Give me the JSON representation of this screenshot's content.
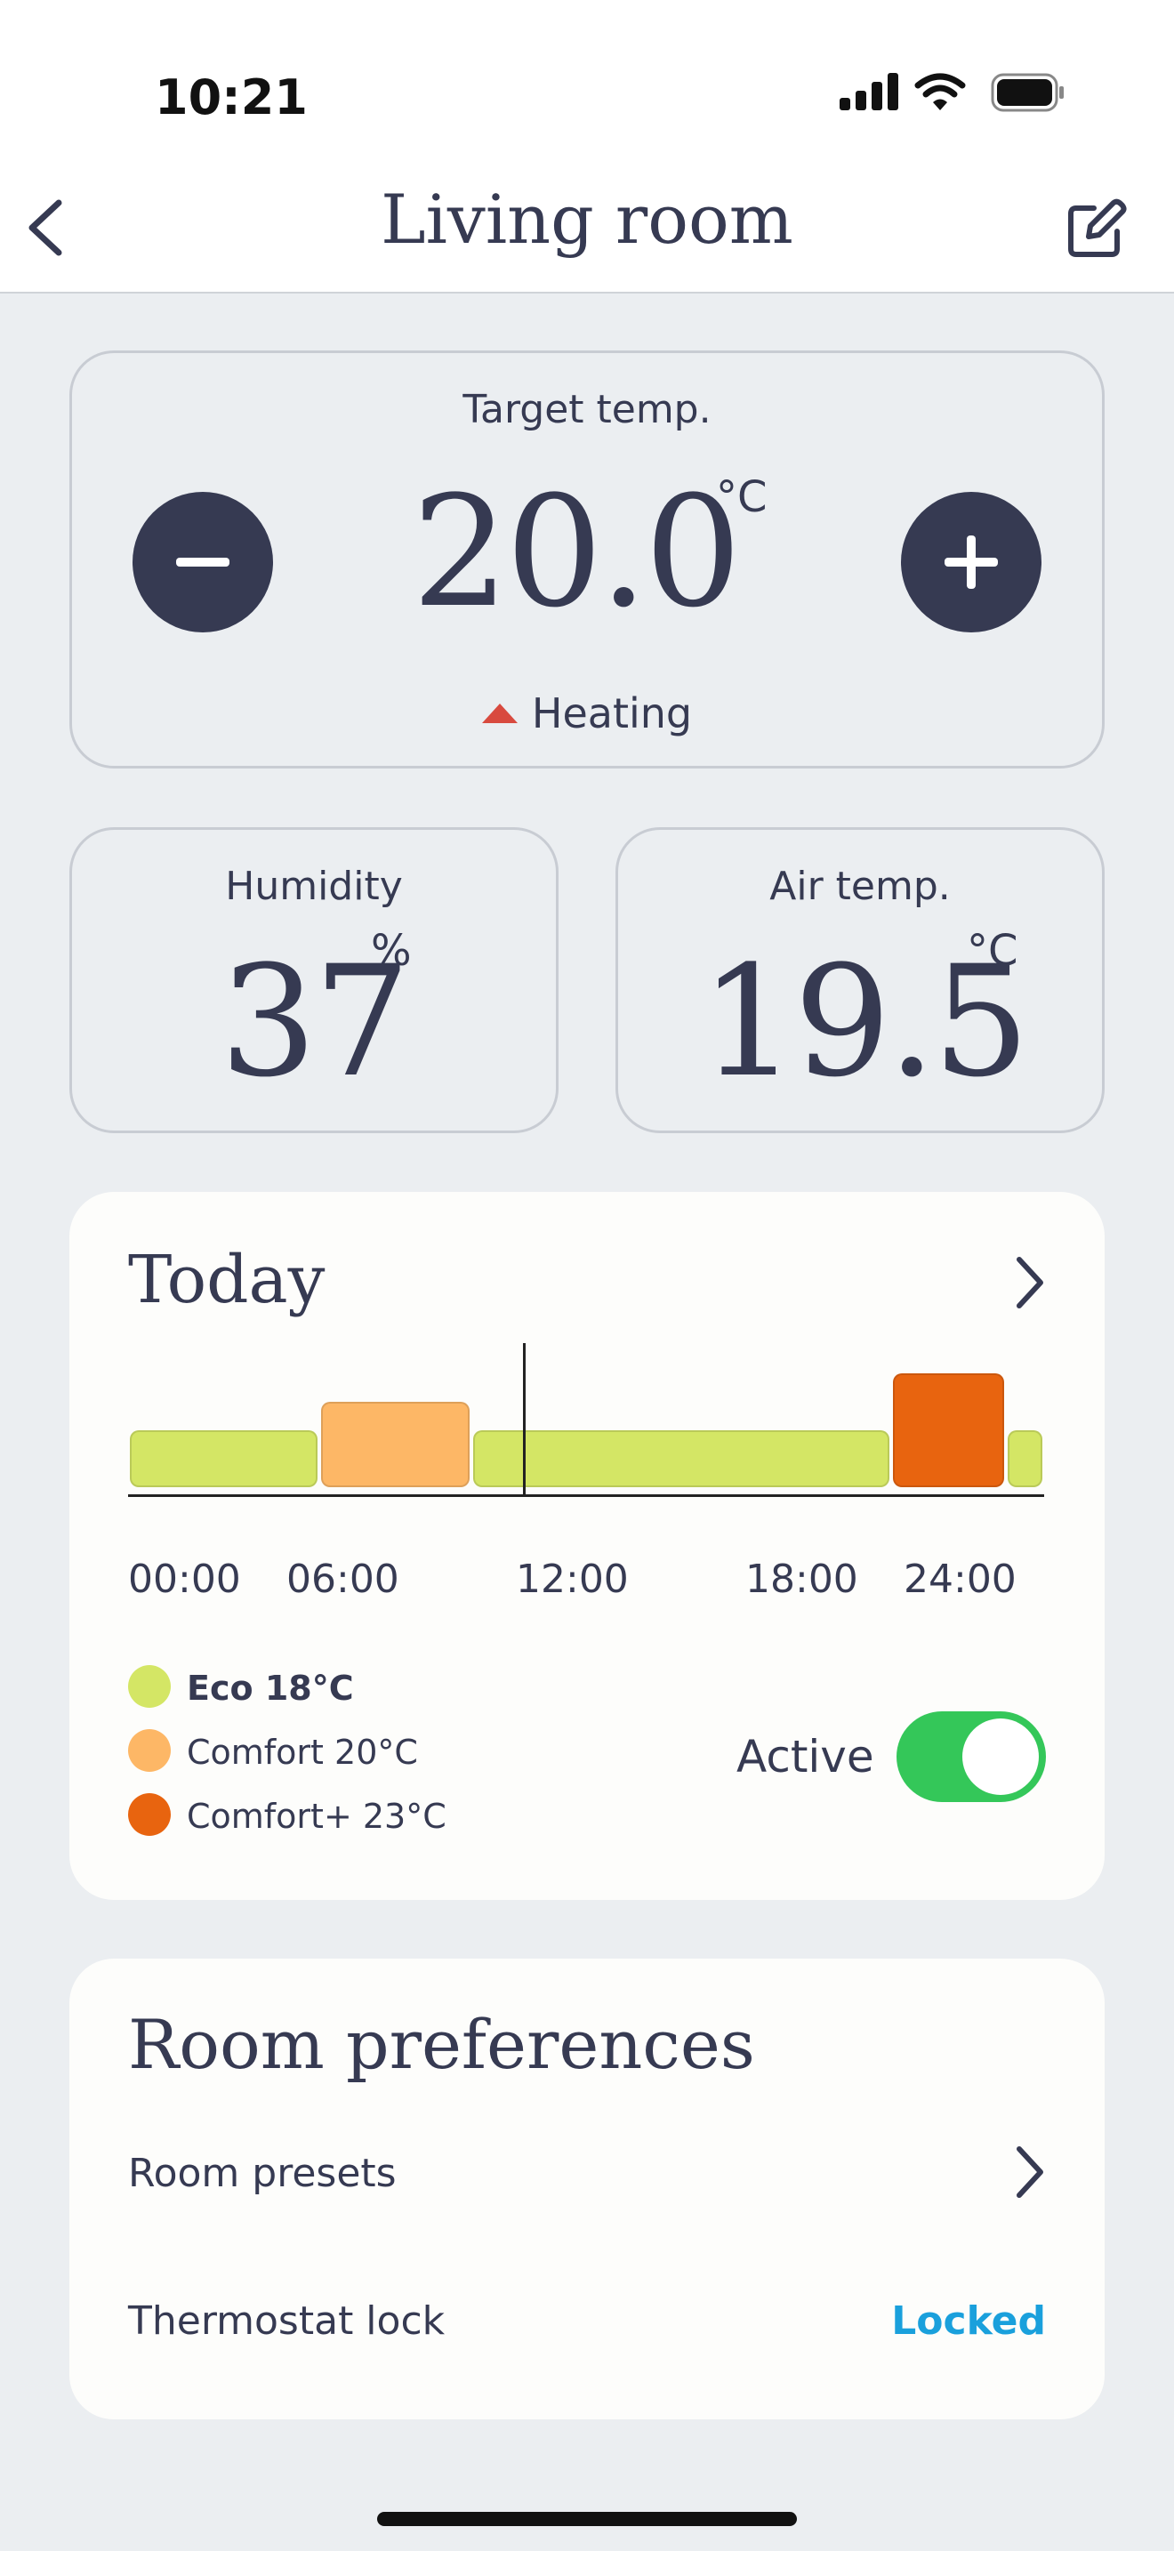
{
  "status_bar": {
    "time": "10:21"
  },
  "header": {
    "title": "Living room"
  },
  "target": {
    "label": "Target temp.",
    "value": "20.0",
    "unit": "°C",
    "mode": "Heating",
    "heating_color": "#d84a3f"
  },
  "humidity": {
    "label": "Humidity",
    "value": "37",
    "unit": "%"
  },
  "air_temp": {
    "label": "Air temp.",
    "value": "19.5",
    "unit": "°C"
  },
  "today": {
    "title": "Today",
    "schedule": [
      {
        "start": "00:00",
        "end": "05:00",
        "preset": "eco"
      },
      {
        "start": "05:00",
        "end": "09:00",
        "preset": "comfort"
      },
      {
        "start": "09:00",
        "end": "20:00",
        "preset": "eco"
      },
      {
        "start": "20:00",
        "end": "23:00",
        "preset": "comfort_plus"
      },
      {
        "start": "23:00",
        "end": "24:00",
        "preset": "eco"
      }
    ],
    "current_time": "10:21",
    "ticks": [
      "00:00",
      "06:00",
      "12:00",
      "18:00",
      "24:00"
    ],
    "legend": [
      {
        "key": "eco",
        "label": "Eco 18°C",
        "color": "#d4e665",
        "bold": true
      },
      {
        "key": "comfort",
        "label": "Comfort 20°C",
        "color": "#fdb766",
        "bold": false
      },
      {
        "key": "comfort_plus",
        "label": "Comfort+ 23°C",
        "color": "#e8640f",
        "bold": false
      }
    ],
    "active_label": "Active",
    "active": true,
    "toggle_color": "#34c759"
  },
  "preferences": {
    "title": "Room preferences",
    "presets_label": "Room presets",
    "lock_label": "Thermostat lock",
    "lock_value": "Locked",
    "lock_color": "#1aa0dc"
  }
}
